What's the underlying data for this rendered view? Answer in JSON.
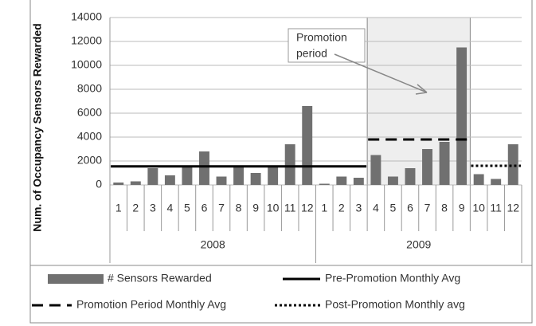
{
  "chart_data": {
    "type": "bar",
    "y_label": "Num. of Occupancy Sensors Rewarded",
    "categories": [
      "1",
      "2",
      "3",
      "4",
      "5",
      "6",
      "7",
      "8",
      "9",
      "10",
      "11",
      "12",
      "1",
      "2",
      "3",
      "4",
      "5",
      "6",
      "7",
      "8",
      "9",
      "10",
      "11",
      "12"
    ],
    "category_groups": [
      {
        "label": "2008",
        "count": 12
      },
      {
        "label": "2009",
        "count": 12
      }
    ],
    "series": [
      {
        "name": "# Sensors Rewarded",
        "type": "bar",
        "color": "#707070",
        "values": [
          200,
          300,
          1400,
          800,
          1600,
          2800,
          700,
          1600,
          1000,
          1600,
          3400,
          6600,
          100,
          700,
          600,
          2500,
          700,
          1400,
          3000,
          3600,
          11500,
          900,
          500,
          3400
        ]
      },
      {
        "name": "Pre-Promotion Monthly Avg",
        "type": "line",
        "style": "solid",
        "color": "#000000",
        "values": [
          1550,
          1550,
          1550,
          1550,
          1550,
          1550,
          1550,
          1550,
          1550,
          1550,
          1550,
          1550,
          1550,
          1550,
          1550,
          null,
          null,
          null,
          null,
          null,
          null,
          null,
          null,
          null
        ]
      },
      {
        "name": "Promotion Period Monthly Avg",
        "type": "line",
        "style": "dashed",
        "color": "#000000",
        "values": [
          null,
          null,
          null,
          null,
          null,
          null,
          null,
          null,
          null,
          null,
          null,
          null,
          null,
          null,
          null,
          3800,
          3800,
          3800,
          3800,
          3800,
          3800,
          null,
          null,
          null
        ]
      },
      {
        "name": "Post-Promotion Monthly avg",
        "type": "line",
        "style": "dotted",
        "color": "#000000",
        "values": [
          null,
          null,
          null,
          null,
          null,
          null,
          null,
          null,
          null,
          null,
          null,
          null,
          null,
          null,
          null,
          null,
          null,
          null,
          null,
          null,
          null,
          1600,
          1600,
          1600
        ]
      }
    ],
    "annotation": {
      "text": [
        "Promotion",
        "period"
      ]
    },
    "ylim": [
      0,
      14000
    ],
    "yticks": [
      0,
      2000,
      4000,
      6000,
      8000,
      10000,
      12000,
      14000
    ],
    "grid": true
  }
}
